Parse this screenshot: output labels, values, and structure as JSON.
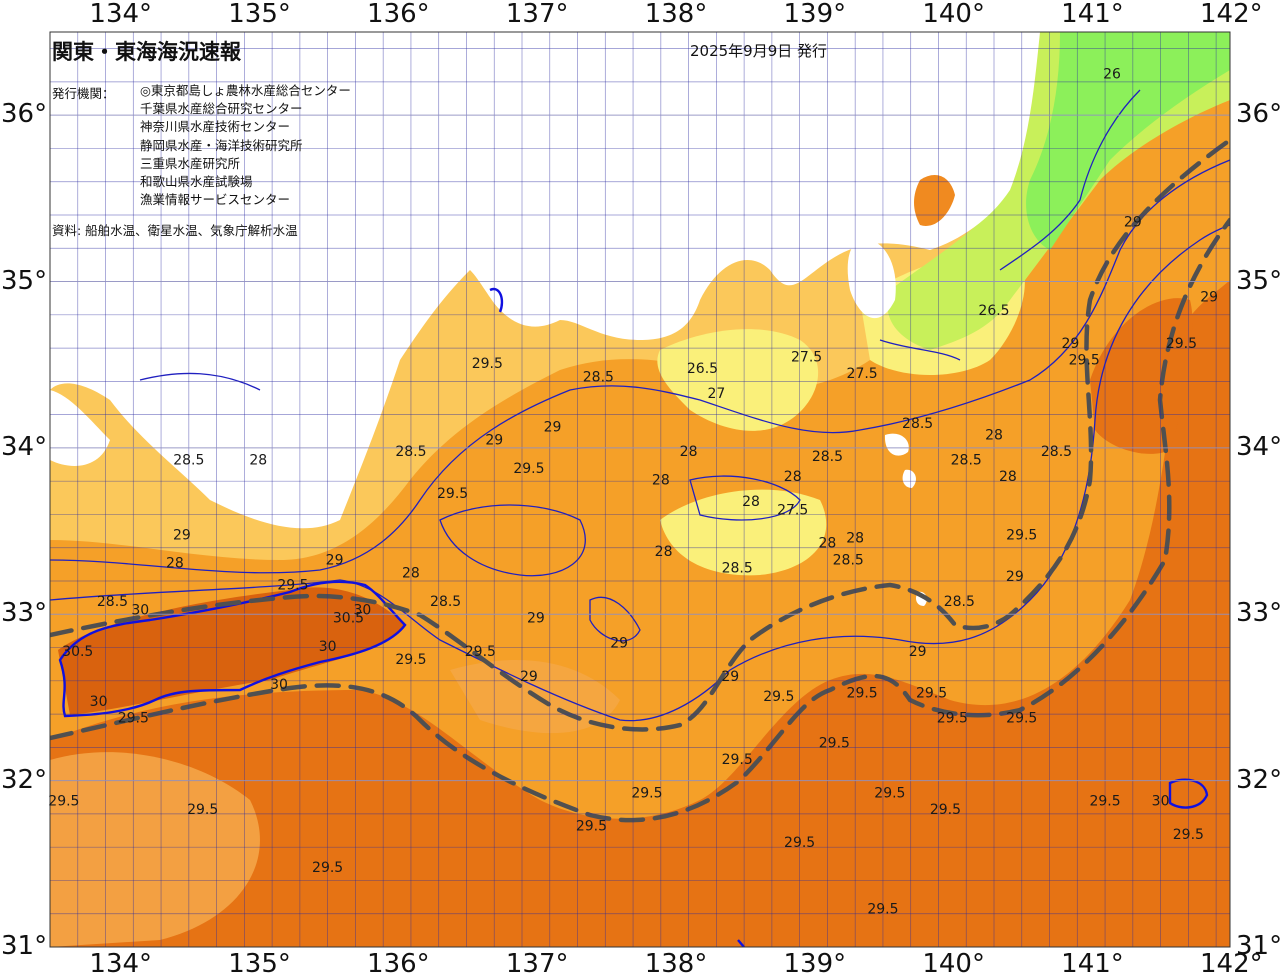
{
  "header": {
    "title": "関東・東海海況速報",
    "issued": "2025年9月9日 発行"
  },
  "info": {
    "agency_heading": "発行機関：",
    "agencies": [
      "◎東京都島しょ農林水産総合センター",
      "千葉県水産総合研究センター",
      "神奈川県水産技術センター",
      "静岡県水産・海洋技術研究所",
      "三重県水産研究所",
      "和歌山県水産試験場",
      "漁業情報サービスセンター"
    ],
    "source": "資料: 船舶水温、衛星水温、気象庁解析水温"
  },
  "axes": {
    "longitudes": [
      "134°",
      "135°",
      "136°",
      "137°",
      "138°",
      "139°",
      "140°",
      "141°",
      "142°"
    ],
    "latitudes": [
      "36°",
      "35°",
      "34°",
      "33°",
      "32°",
      "31°"
    ]
  },
  "map": {
    "lon_range": [
      133.5,
      142
    ],
    "lat_range": [
      31,
      36.5
    ],
    "colors": {
      "sea_warm": "#f5a028",
      "sea_hot": "#e67314",
      "sea_mild": "#fbc85a",
      "sea_cool": "#faf07a",
      "sea_cold": "#c8f05a",
      "sea_coldest": "#8cf05a",
      "land": "#ffffff",
      "isotherm": "#2020c0",
      "kuroshio_axis": "#505050",
      "grid": "#2a2aa0"
    },
    "isotherm_labels": [
      {
        "text": "26",
        "lon": 141.15,
        "lat": 36.22
      },
      {
        "text": "29",
        "lon": 141.3,
        "lat": 35.33
      },
      {
        "text": "29",
        "lon": 141.85,
        "lat": 34.88
      },
      {
        "text": "29",
        "lon": 140.85,
        "lat": 34.6
      },
      {
        "text": "29.5",
        "lon": 140.95,
        "lat": 34.5
      },
      {
        "text": "29.5",
        "lon": 141.65,
        "lat": 34.6
      },
      {
        "text": "26.5",
        "lon": 140.3,
        "lat": 34.8
      },
      {
        "text": "27.5",
        "lon": 138.95,
        "lat": 34.52
      },
      {
        "text": "27.5",
        "lon": 139.35,
        "lat": 34.42
      },
      {
        "text": "26.5",
        "lon": 138.2,
        "lat": 34.45
      },
      {
        "text": "27",
        "lon": 138.3,
        "lat": 34.3
      },
      {
        "text": "28.5",
        "lon": 137.45,
        "lat": 34.4
      },
      {
        "text": "29.5",
        "lon": 136.65,
        "lat": 34.48
      },
      {
        "text": "28.5",
        "lon": 139.75,
        "lat": 34.12
      },
      {
        "text": "28",
        "lon": 140.3,
        "lat": 34.05
      },
      {
        "text": "28.5",
        "lon": 140.75,
        "lat": 33.95
      },
      {
        "text": "28.5",
        "lon": 140.1,
        "lat": 33.9
      },
      {
        "text": "28",
        "lon": 140.4,
        "lat": 33.8
      },
      {
        "text": "28.5",
        "lon": 139.1,
        "lat": 33.92
      },
      {
        "text": "28",
        "lon": 138.1,
        "lat": 33.95
      },
      {
        "text": "28",
        "lon": 137.9,
        "lat": 33.78
      },
      {
        "text": "28",
        "lon": 138.55,
        "lat": 33.65
      },
      {
        "text": "27.5",
        "lon": 138.85,
        "lat": 33.6
      },
      {
        "text": "28",
        "lon": 138.85,
        "lat": 33.8
      },
      {
        "text": "29",
        "lon": 136.7,
        "lat": 34.02
      },
      {
        "text": "29.5",
        "lon": 136.95,
        "lat": 33.85
      },
      {
        "text": "29",
        "lon": 137.12,
        "lat": 34.1
      },
      {
        "text": "28",
        "lon": 137.92,
        "lat": 33.35
      },
      {
        "text": "28.5",
        "lon": 138.45,
        "lat": 33.25
      },
      {
        "text": "28",
        "lon": 139.1,
        "lat": 33.4
      },
      {
        "text": "28.5",
        "lon": 139.25,
        "lat": 33.3
      },
      {
        "text": "28",
        "lon": 139.3,
        "lat": 33.43
      },
      {
        "text": "29.5",
        "lon": 140.5,
        "lat": 33.45
      },
      {
        "text": "28.5",
        "lon": 136.1,
        "lat": 33.95
      },
      {
        "text": "29.5",
        "lon": 136.4,
        "lat": 33.7
      },
      {
        "text": "28",
        "lon": 135.0,
        "lat": 33.9
      },
      {
        "text": "28.5",
        "lon": 134.5,
        "lat": 33.9
      },
      {
        "text": "29",
        "lon": 134.45,
        "lat": 33.45
      },
      {
        "text": "28",
        "lon": 134.4,
        "lat": 33.28
      },
      {
        "text": "29",
        "lon": 135.55,
        "lat": 33.3
      },
      {
        "text": "29.5",
        "lon": 135.25,
        "lat": 33.15
      },
      {
        "text": "28",
        "lon": 136.1,
        "lat": 33.22
      },
      {
        "text": "28.5",
        "lon": 136.35,
        "lat": 33.05
      },
      {
        "text": "28.5",
        "lon": 133.95,
        "lat": 33.05
      },
      {
        "text": "30",
        "lon": 134.15,
        "lat": 33.0
      },
      {
        "text": "30",
        "lon": 135.75,
        "lat": 33.0
      },
      {
        "text": "30.5",
        "lon": 135.65,
        "lat": 32.95
      },
      {
        "text": "30",
        "lon": 135.5,
        "lat": 32.78
      },
      {
        "text": "30.5",
        "lon": 133.7,
        "lat": 32.75
      },
      {
        "text": "30",
        "lon": 135.15,
        "lat": 32.55
      },
      {
        "text": "30",
        "lon": 133.85,
        "lat": 32.45
      },
      {
        "text": "29.5",
        "lon": 136.1,
        "lat": 32.7
      },
      {
        "text": "29.5",
        "lon": 136.6,
        "lat": 32.75
      },
      {
        "text": "29",
        "lon": 136.95,
        "lat": 32.6
      },
      {
        "text": "29",
        "lon": 137.0,
        "lat": 32.95
      },
      {
        "text": "29",
        "lon": 137.6,
        "lat": 32.8
      },
      {
        "text": "29",
        "lon": 138.4,
        "lat": 32.6
      },
      {
        "text": "29.5",
        "lon": 138.75,
        "lat": 32.48
      },
      {
        "text": "28.5",
        "lon": 140.05,
        "lat": 33.05
      },
      {
        "text": "29",
        "lon": 140.45,
        "lat": 33.2
      },
      {
        "text": "29",
        "lon": 139.75,
        "lat": 32.75
      },
      {
        "text": "29.5",
        "lon": 139.35,
        "lat": 32.5
      },
      {
        "text": "29.5",
        "lon": 139.85,
        "lat": 32.5
      },
      {
        "text": "29.5",
        "lon": 140.0,
        "lat": 32.35
      },
      {
        "text": "29.5",
        "lon": 140.5,
        "lat": 32.35
      },
      {
        "text": "29.5",
        "lon": 139.15,
        "lat": 32.2
      },
      {
        "text": "29.5",
        "lon": 138.45,
        "lat": 32.1
      },
      {
        "text": "29.5",
        "lon": 137.8,
        "lat": 31.9
      },
      {
        "text": "29.5",
        "lon": 137.4,
        "lat": 31.7
      },
      {
        "text": "29.5",
        "lon": 134.1,
        "lat": 32.35
      },
      {
        "text": "29.5",
        "lon": 133.6,
        "lat": 31.85
      },
      {
        "text": "29.5",
        "lon": 134.6,
        "lat": 31.8
      },
      {
        "text": "29.5",
        "lon": 135.5,
        "lat": 31.45
      },
      {
        "text": "29.5",
        "lon": 138.9,
        "lat": 31.6
      },
      {
        "text": "29.5",
        "lon": 139.55,
        "lat": 31.9
      },
      {
        "text": "29.5",
        "lon": 139.95,
        "lat": 31.8
      },
      {
        "text": "29.5",
        "lon": 141.1,
        "lat": 31.85
      },
      {
        "text": "29.5",
        "lon": 141.7,
        "lat": 31.65
      },
      {
        "text": "29.5",
        "lon": 139.5,
        "lat": 31.2
      },
      {
        "text": "30",
        "lon": 141.5,
        "lat": 31.85
      }
    ]
  }
}
